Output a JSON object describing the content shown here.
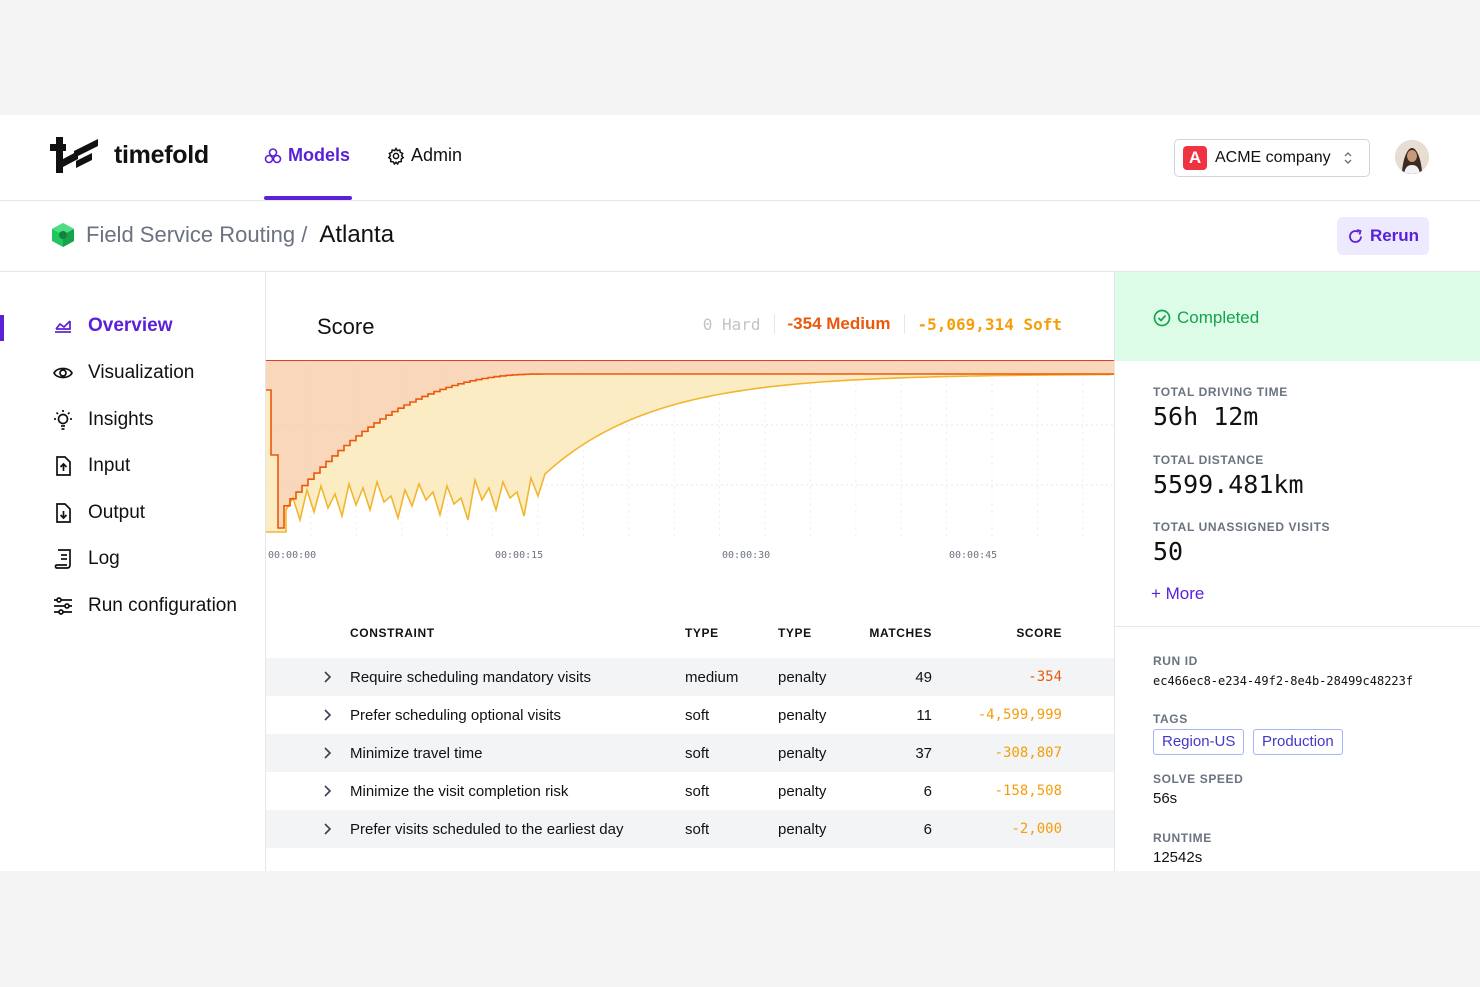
{
  "header": {
    "brand": "timefold",
    "nav": [
      {
        "label": "Models",
        "icon": "models-icon",
        "active": true
      },
      {
        "label": "Admin",
        "icon": "gear-icon",
        "active": false
      }
    ],
    "company": {
      "badge": "A",
      "name": "ACME company"
    }
  },
  "breadcrumb": {
    "parent": "Field Service Routing /",
    "current": "Atlanta",
    "rerun_label": "Rerun"
  },
  "sidebar": {
    "items": [
      {
        "label": "Overview",
        "icon": "overview-icon",
        "active": true
      },
      {
        "label": "Visualization",
        "icon": "eye-icon"
      },
      {
        "label": "Insights",
        "icon": "lightbulb-icon"
      },
      {
        "label": "Input",
        "icon": "file-upload-icon"
      },
      {
        "label": "Output",
        "icon": "file-download-icon"
      },
      {
        "label": "Log",
        "icon": "log-icon"
      },
      {
        "label": "Run configuration",
        "icon": "sliders-icon"
      }
    ]
  },
  "score": {
    "title": "Score",
    "hard": "0 Hard",
    "medium": "-354 Medium",
    "soft": "-5,069,314 Soft"
  },
  "chart_data": {
    "type": "area",
    "x_ticks": [
      "00:00:00",
      "00:00:15",
      "00:00:30",
      "00:00:45"
    ],
    "series": [
      {
        "color": "#ea580c"
      },
      {
        "color": "#f59e0b"
      }
    ]
  },
  "constraints": {
    "headers": {
      "constraint": "CONSTRAINT",
      "type": "TYPE",
      "type2": "TYPE",
      "matches": "MATCHES",
      "score": "SCORE"
    },
    "rows": [
      {
        "name": "Require scheduling mandatory visits",
        "type": "medium",
        "type2": "penalty",
        "matches": "49",
        "score": "-354"
      },
      {
        "name": "Prefer scheduling optional visits",
        "type": "soft",
        "type2": "penalty",
        "matches": "11",
        "score": "-4,599,999"
      },
      {
        "name": "Minimize travel time",
        "type": "soft",
        "type2": "penalty",
        "matches": "37",
        "score": "-308,807"
      },
      {
        "name": "Minimize the visit completion risk",
        "type": "soft",
        "type2": "penalty",
        "matches": "6",
        "score": "-158,508"
      },
      {
        "name": "Prefer visits scheduled to the earliest day",
        "type": "soft",
        "type2": "penalty",
        "matches": "6",
        "score": "-2,000"
      }
    ]
  },
  "summary": {
    "status": "Completed",
    "stats": [
      {
        "label": "TOTAL DRIVING TIME",
        "value": "56h 12m"
      },
      {
        "label": "TOTAL DISTANCE",
        "value": "5599.481km"
      },
      {
        "label": "TOTAL UNASSIGNED VISITS",
        "value": "50"
      }
    ],
    "more_label": "+ More",
    "run_id_label": "RUN ID",
    "run_id": "ec466ec8-e234-49f2-8e4b-28499c48223f",
    "tags_label": "TAGS",
    "tags": [
      "Region-US",
      "Production"
    ],
    "solve_speed_label": "SOLVE SPEED",
    "solve_speed": "56s",
    "runtime_label": "RUNTIME",
    "runtime": "12542s"
  }
}
